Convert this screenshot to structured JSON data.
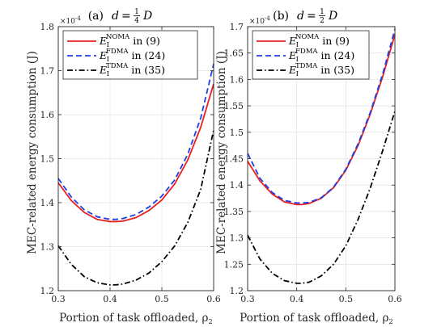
{
  "figure": {
    "ylabel": "MEC-related energy consumption (J)",
    "xlabel": "Portion of task offloaded, ρ",
    "xlabel_sub": "2"
  },
  "chart_data": [
    {
      "type": "line",
      "title": "(a) d = ¼ D",
      "title_parts": {
        "prefix": "(a)",
        "var": "d",
        "eq": "=",
        "num": "1",
        "den": "4",
        "rhs": "D"
      },
      "y_multiplier": "×10",
      "y_multiplier_exp": "-4",
      "xlim": [
        0.3,
        0.6
      ],
      "ylim": [
        1.2,
        1.8
      ],
      "xticks": [
        0.3,
        0.4,
        0.5,
        0.6
      ],
      "xtick_labels": [
        "0.3",
        "0.4",
        "0.5",
        "0.6"
      ],
      "yticks": [
        1.2,
        1.3,
        1.4,
        1.5,
        1.6,
        1.7,
        1.8
      ],
      "ytick_labels": [
        "1.2",
        "1.3",
        "1.4",
        "1.5",
        "1.6",
        "1.7",
        "1.8"
      ],
      "grid": true,
      "legend_position": "top-left",
      "series": [
        {
          "name": "E_I^NOMA in (9)",
          "base": "E",
          "sub": "I",
          "sup": "NOMA",
          "suffix": " in (9)",
          "color": "#e8201f",
          "style": "solid",
          "x": [
            0.3,
            0.325,
            0.35,
            0.375,
            0.4,
            0.41,
            0.425,
            0.45,
            0.475,
            0.5,
            0.525,
            0.55,
            0.575,
            0.6
          ],
          "y": [
            1.445,
            1.405,
            1.378,
            1.362,
            1.357,
            1.357,
            1.358,
            1.366,
            1.382,
            1.406,
            1.443,
            1.497,
            1.571,
            1.67
          ]
        },
        {
          "name": "E_I^FDMA in (24)",
          "base": "E",
          "sub": "I",
          "sup": "FDMA",
          "suffix": " in (24)",
          "color": "#1f3de8",
          "style": "dashed",
          "x": [
            0.3,
            0.325,
            0.35,
            0.375,
            0.4,
            0.41,
            0.425,
            0.45,
            0.475,
            0.5,
            0.525,
            0.55,
            0.575,
            0.6
          ],
          "y": [
            1.455,
            1.413,
            1.384,
            1.368,
            1.362,
            1.362,
            1.364,
            1.373,
            1.39,
            1.415,
            1.452,
            1.51,
            1.592,
            1.715
          ]
        },
        {
          "name": "E_I^TDMA in (35)",
          "base": "E",
          "sub": "I",
          "sup": "TDMA",
          "suffix": " in (35)",
          "color": "#000000",
          "style": "dashdot",
          "x": [
            0.3,
            0.325,
            0.35,
            0.375,
            0.4,
            0.41,
            0.425,
            0.45,
            0.475,
            0.5,
            0.525,
            0.55,
            0.575,
            0.6
          ],
          "y": [
            1.302,
            1.26,
            1.232,
            1.218,
            1.213,
            1.213,
            1.215,
            1.224,
            1.24,
            1.266,
            1.302,
            1.355,
            1.43,
            1.565
          ]
        }
      ]
    },
    {
      "type": "line",
      "title": "(b) d = ½ D",
      "title_parts": {
        "prefix": "(b)",
        "var": "d",
        "eq": "=",
        "num": "1",
        "den": "2",
        "rhs": "D"
      },
      "y_multiplier": "×10",
      "y_multiplier_exp": "-4",
      "xlim": [
        0.3,
        0.6
      ],
      "ylim": [
        1.2,
        1.7
      ],
      "xticks": [
        0.3,
        0.4,
        0.5,
        0.6
      ],
      "xtick_labels": [
        "0.3",
        "0.4",
        "0.5",
        "0.6"
      ],
      "yticks": [
        1.2,
        1.25,
        1.3,
        1.35,
        1.4,
        1.45,
        1.5,
        1.55,
        1.6,
        1.65,
        1.7
      ],
      "ytick_labels": [
        "1.2",
        "1.25",
        "1.3",
        "1.35",
        "1.4",
        "1.45",
        "1.5",
        "1.55",
        "1.6",
        "1.65",
        "1.7"
      ],
      "grid": true,
      "legend_position": "top-left",
      "series": [
        {
          "name": "E_I^NOMA in (9)",
          "base": "E",
          "sub": "I",
          "sup": "NOMA",
          "suffix": " in (9)",
          "color": "#e8201f",
          "style": "solid",
          "x": [
            0.3,
            0.325,
            0.35,
            0.375,
            0.4,
            0.41,
            0.425,
            0.45,
            0.475,
            0.5,
            0.525,
            0.55,
            0.575,
            0.6
          ],
          "y": [
            1.445,
            1.408,
            1.383,
            1.368,
            1.363,
            1.363,
            1.365,
            1.375,
            1.395,
            1.428,
            1.475,
            1.535,
            1.605,
            1.685
          ]
        },
        {
          "name": "E_I^FDMA in (24)",
          "base": "E",
          "sub": "I",
          "sup": "FDMA",
          "suffix": " in (24)",
          "color": "#1f3de8",
          "style": "dashed",
          "x": [
            0.3,
            0.325,
            0.35,
            0.375,
            0.4,
            0.41,
            0.425,
            0.45,
            0.475,
            0.5,
            0.525,
            0.55,
            0.575,
            0.6
          ],
          "y": [
            1.46,
            1.413,
            1.386,
            1.371,
            1.366,
            1.366,
            1.367,
            1.376,
            1.396,
            1.43,
            1.478,
            1.538,
            1.61,
            1.695
          ]
        },
        {
          "name": "E_I^TDMA in (35)",
          "base": "E",
          "sub": "I",
          "sup": "TDMA",
          "suffix": " in (35)",
          "color": "#000000",
          "style": "dashdot",
          "x": [
            0.3,
            0.325,
            0.35,
            0.375,
            0.4,
            0.41,
            0.425,
            0.45,
            0.475,
            0.5,
            0.525,
            0.55,
            0.575,
            0.6
          ],
          "y": [
            1.305,
            1.26,
            1.233,
            1.219,
            1.214,
            1.214,
            1.216,
            1.228,
            1.25,
            1.285,
            1.335,
            1.395,
            1.465,
            1.54
          ]
        }
      ]
    }
  ]
}
